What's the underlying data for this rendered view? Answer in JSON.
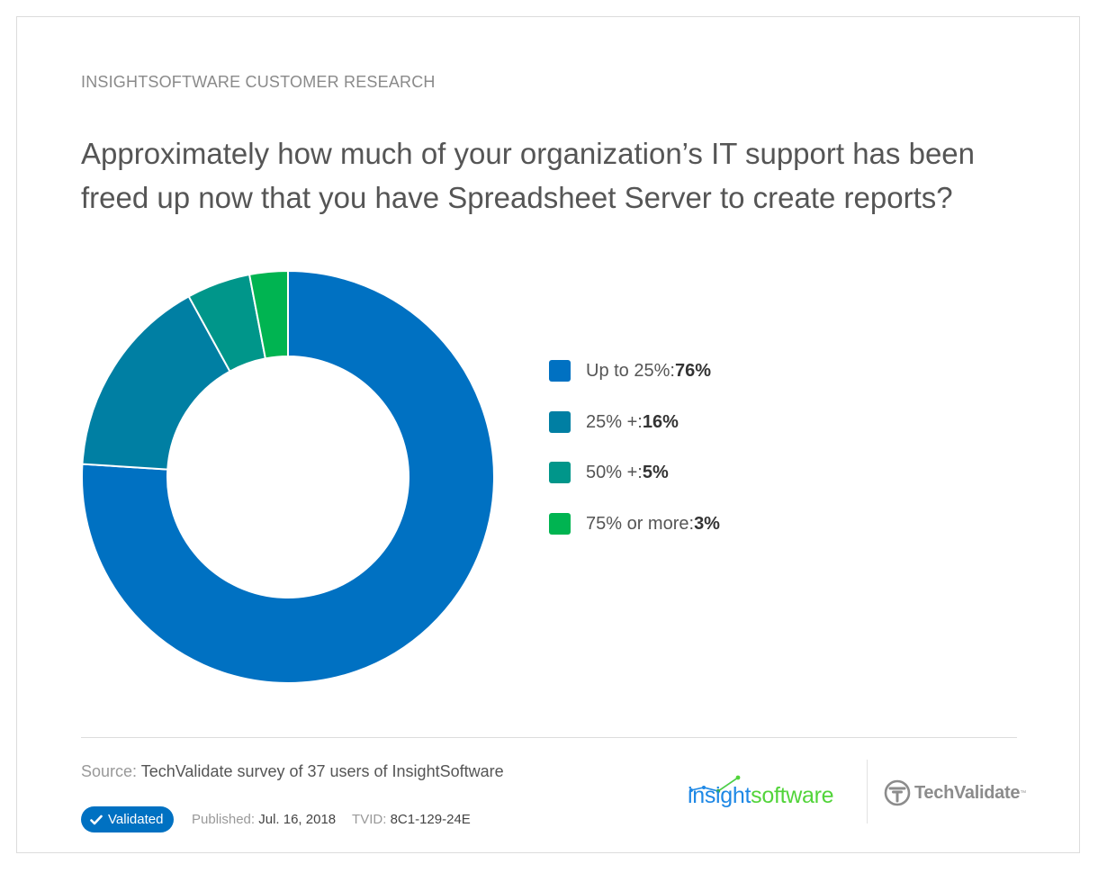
{
  "header": {
    "eyebrow": "INSIGHTSOFTWARE CUSTOMER RESEARCH",
    "question": "Approximately how much of your organization’s IT support has been freed up now that you have Spreadsheet Server to create reports?"
  },
  "chart_data": {
    "type": "pie",
    "subtype": "donut",
    "title": "Approximately how much of your organization’s IT support has been freed up now that you have Spreadsheet Server to create reports?",
    "categories": [
      "Up to 25%",
      "25% +",
      "50% +",
      "75% or more"
    ],
    "values": [
      76,
      16,
      5,
      3
    ],
    "unit": "%",
    "colors": [
      "#0071c2",
      "#007fa3",
      "#00968a",
      "#00b451"
    ],
    "legend_position": "right",
    "start_angle": "top, clockwise"
  },
  "legend": {
    "items": [
      {
        "label": "Up to 25%: ",
        "value": "76%",
        "color": "#0071c2"
      },
      {
        "label": "25% +: ",
        "value": "16%",
        "color": "#007fa3"
      },
      {
        "label": "50% +: ",
        "value": "5%",
        "color": "#00968a"
      },
      {
        "label": "75% or more: ",
        "value": "3%",
        "color": "#00b451"
      }
    ]
  },
  "footer": {
    "source_label": "Source:",
    "source_text": "TechValidate survey of 37 users of InsightSoftware",
    "badge_label": "Validated",
    "published_label": "Published:",
    "published_date": "Jul. 16, 2018",
    "tvid_label": "TVID:",
    "tvid_value": "8C1-129-24E",
    "logo_insight_a": "insight",
    "logo_insight_b": "software",
    "logo_techvalidate": "TechValidate",
    "logo_tm": "™"
  }
}
